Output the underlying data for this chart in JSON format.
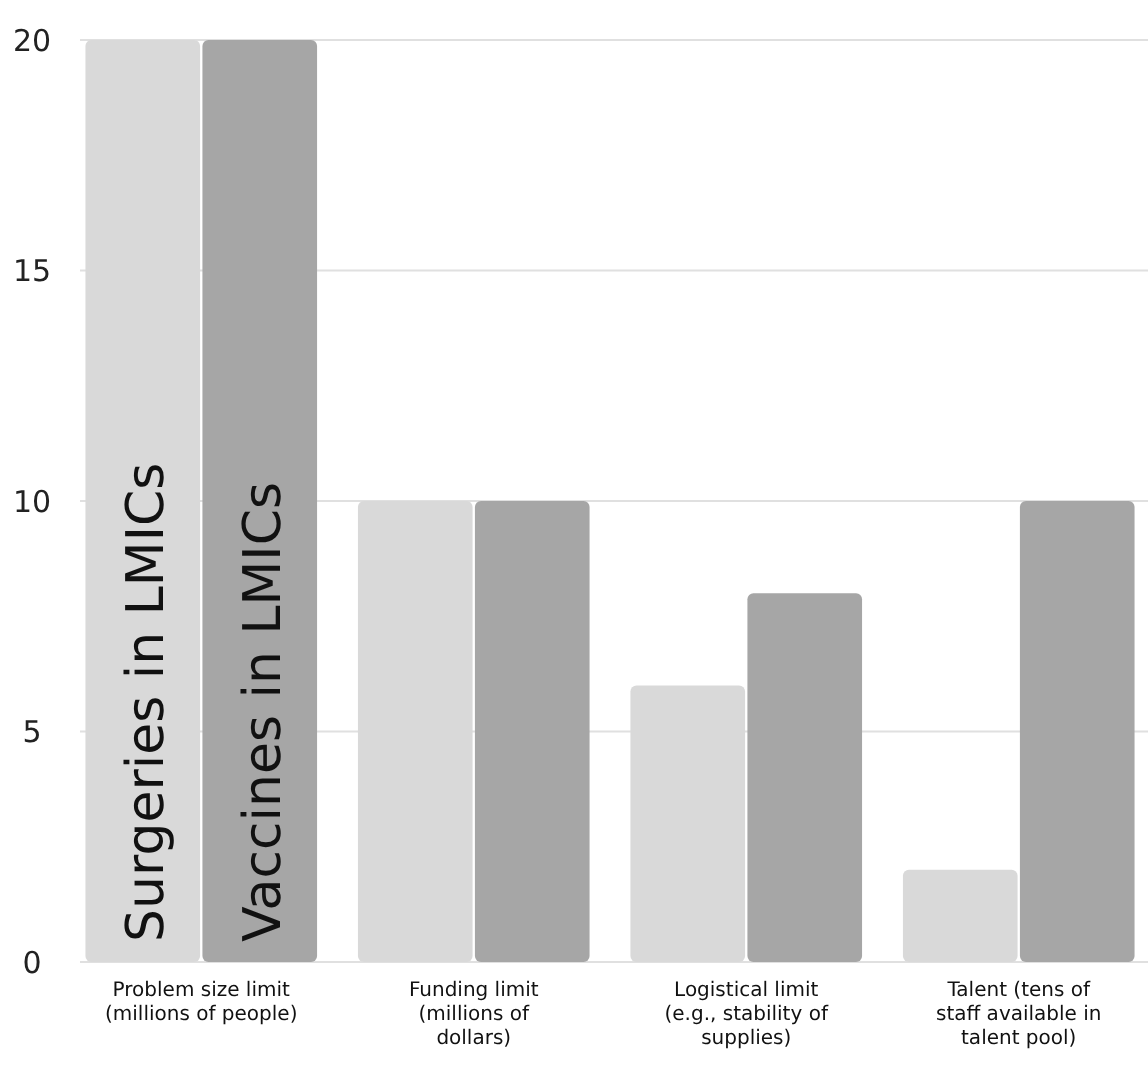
{
  "chart_data": {
    "type": "bar",
    "categories": [
      "Problem size limit (millions of people)",
      "Funding limit (millions of dollars)",
      "Logistical limit (e.g., stability of supplies)",
      "Talent (tens of staff available in talent pool)"
    ],
    "series": [
      {
        "name": "Surgeries in LMICs",
        "color": "#d9d9d9",
        "values": [
          20,
          10,
          6,
          2
        ]
      },
      {
        "name": "Vaccines in LMICs",
        "color": "#a6a6a6",
        "values": [
          20,
          10,
          8,
          10
        ]
      }
    ],
    "ylim": [
      0,
      20
    ],
    "yticks": [
      0,
      5,
      10,
      15,
      20
    ],
    "grid": "y"
  }
}
